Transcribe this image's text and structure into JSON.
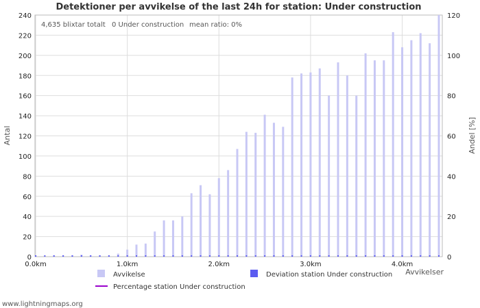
{
  "chart_data": {
    "type": "bar",
    "title": "Detektioner per avvikelse of the last 24h for station: Under construction",
    "stats": {
      "total": "4,635 blixtar totalt",
      "station": "0 Under construction",
      "ratio": "mean ratio: 0%"
    },
    "xlabel": "Avvikelser",
    "ylabel": "Antal",
    "y2label": "Andel [%]",
    "ylim": [
      0,
      240
    ],
    "y2lim": [
      0,
      120
    ],
    "xlim": [
      0,
      4.4
    ],
    "yticks": [
      "0",
      "20",
      "40",
      "60",
      "80",
      "100",
      "120",
      "140",
      "160",
      "180",
      "200",
      "220",
      "240"
    ],
    "y2ticks": [
      "0",
      "20",
      "40",
      "60",
      "80",
      "100",
      "120"
    ],
    "xticks": [
      {
        "v": 0.0,
        "label": "0.0km"
      },
      {
        "v": 1.0,
        "label": "1.0km"
      },
      {
        "v": 2.0,
        "label": "2.0km"
      },
      {
        "v": 3.0,
        "label": "3.0km"
      },
      {
        "v": 4.0,
        "label": "4.0km"
      }
    ],
    "series": [
      {
        "name": "Avvikelse",
        "color": "#c8c8f5",
        "x": [
          0.0,
          0.1,
          0.2,
          0.3,
          0.4,
          0.5,
          0.6,
          0.7,
          0.8,
          0.9,
          1.0,
          1.1,
          1.2,
          1.3,
          1.4,
          1.5,
          1.6,
          1.7,
          1.8,
          1.9,
          2.0,
          2.1,
          2.2,
          2.3,
          2.4,
          2.5,
          2.6,
          2.7,
          2.8,
          2.9,
          3.0,
          3.1,
          3.2,
          3.3,
          3.4,
          3.5,
          3.6,
          3.7,
          3.8,
          3.9,
          4.0,
          4.1,
          4.2,
          4.3,
          4.4
        ],
        "values": [
          1,
          0,
          1,
          1,
          1,
          2,
          1,
          1,
          1,
          3,
          7,
          12,
          13,
          25,
          36,
          36,
          40,
          63,
          71,
          62,
          78,
          86,
          107,
          124,
          123,
          141,
          133,
          129,
          178,
          182,
          183,
          187,
          160,
          193,
          180,
          160,
          202,
          195,
          195,
          223,
          208,
          215,
          222,
          212,
          240
        ]
      },
      {
        "name": "Deviation station Under construction",
        "color": "#5c5cf0",
        "values": [
          0
        ]
      },
      {
        "name": "Percentage station Under construction",
        "color": "#9900cc",
        "values": [
          0
        ]
      }
    ]
  },
  "footer": "www.lightningmaps.org"
}
